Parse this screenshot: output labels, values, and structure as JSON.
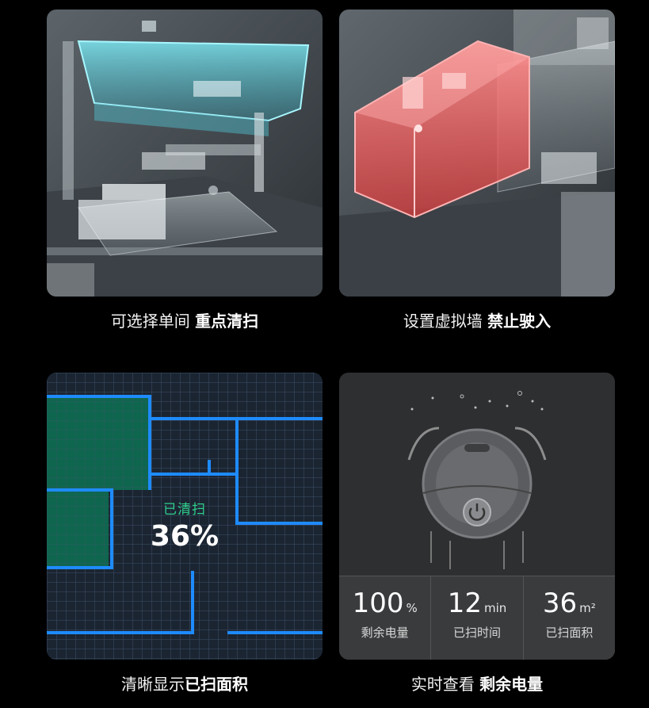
{
  "captions": {
    "p1_normal": "可选择单间 ",
    "p1_bold": "重点清扫",
    "p2_normal": "设置虚拟墙 ",
    "p2_bold": "禁止驶入",
    "p3_normal": "清晰显示",
    "p3_bold": "已扫面积",
    "p4_normal": "实时查看 ",
    "p4_bold": "剩余电量"
  },
  "map": {
    "label": "已清扫",
    "value": "36%"
  },
  "stats": [
    {
      "value": "100",
      "unit": "%",
      "label": "剩余电量"
    },
    {
      "value": "12",
      "unit": "min",
      "label": "已扫时间"
    },
    {
      "value": "36",
      "unit": "m²",
      "label": "已扫面积"
    }
  ],
  "colors": {
    "highlight_room": "#6fe3f0",
    "virtual_wall": "#ff5a5a",
    "map_walls": "#1e8bff",
    "cleaned_area": "#0e6e52",
    "cleaned_text": "#2fce8c"
  },
  "icons": {
    "robot": "robot-vacuum-icon",
    "power": "power-icon"
  }
}
